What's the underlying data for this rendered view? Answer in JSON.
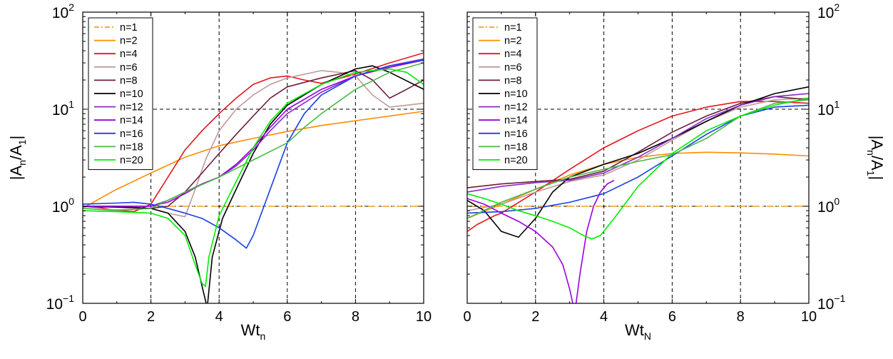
{
  "chart_data": [
    {
      "type": "line",
      "panel": "left",
      "xlabel": "Wt",
      "xlabel_sub": "n",
      "ylabel_parts": [
        "|A",
        "n",
        "/A",
        "1",
        "|"
      ],
      "ylabel_side": "left",
      "xlim": [
        0,
        10
      ],
      "ylim": [
        0.1,
        100
      ],
      "yscale": "log",
      "xticks": [
        "0",
        "2",
        "4",
        "6",
        "8",
        "10"
      ],
      "yticks": [
        {
          "base": "10",
          "exp": "−1"
        },
        {
          "base": "10",
          "exp": "0"
        },
        {
          "base": "10",
          "exp": "1"
        },
        {
          "base": "10",
          "exp": "2"
        }
      ],
      "grid": {
        "vertical_x": [
          2,
          4,
          6,
          8
        ],
        "horizontal_y": [
          1,
          10
        ],
        "style": "dashed"
      },
      "legend": "top-left",
      "series": [
        {
          "name": "n=1",
          "color": "#f4a01c",
          "dash": "dashdot",
          "x": [
            0,
            10
          ],
          "y": [
            1,
            1
          ]
        },
        {
          "name": "n=2",
          "color": "#ff8c00",
          "x": [
            0,
            0.5,
            1,
            2,
            3,
            4,
            5,
            6,
            7,
            8,
            9,
            10
          ],
          "y": [
            0.95,
            1.2,
            1.5,
            2.2,
            3.2,
            4.2,
            5.0,
            5.9,
            6.8,
            7.6,
            8.5,
            9.5
          ]
        },
        {
          "name": "n=4",
          "color": "#e8141e",
          "x": [
            0,
            0.5,
            1,
            1.5,
            2,
            2.5,
            3,
            3.5,
            4,
            4.5,
            5,
            5.5,
            6,
            6.5,
            7,
            8,
            9,
            10
          ],
          "y": [
            1.0,
            0.97,
            0.9,
            0.88,
            1.05,
            2.0,
            3.8,
            6.0,
            9.0,
            13.0,
            18.0,
            21.0,
            22.0,
            20.0,
            18.5,
            23.0,
            30.0,
            38.0
          ]
        },
        {
          "name": "n=6",
          "color": "#c09a9a",
          "x": [
            0,
            1,
            2,
            2.5,
            3,
            3.3,
            3.6,
            4,
            4.5,
            5,
            5.5,
            6,
            7,
            7.5,
            8,
            8.5,
            9,
            10
          ],
          "y": [
            0.95,
            0.92,
            0.95,
            0.85,
            0.78,
            1.5,
            3.0,
            6.0,
            10.0,
            14.0,
            18.0,
            21.0,
            25.0,
            24.0,
            22.0,
            14.0,
            10.5,
            11.5
          ]
        },
        {
          "name": "n=8",
          "color": "#6e1e3c",
          "x": [
            0,
            1,
            2,
            2.5,
            3,
            3.5,
            4,
            4.5,
            5,
            5.5,
            6,
            7,
            8,
            8.5,
            9,
            9.5,
            10
          ],
          "y": [
            1.0,
            1.0,
            0.95,
            1.0,
            1.4,
            2.2,
            3.5,
            5.5,
            8.5,
            13.0,
            17.0,
            21.0,
            25.0,
            20.0,
            13.0,
            16.0,
            20.0
          ]
        },
        {
          "name": "n=10",
          "color": "#000000",
          "x": [
            0,
            1,
            2,
            2.5,
            3,
            3.3,
            3.5,
            3.65,
            3.8,
            4.1,
            4.5,
            5,
            5.5,
            6,
            7,
            8,
            8.5,
            9,
            10
          ],
          "y": [
            1.0,
            0.98,
            0.95,
            0.85,
            0.55,
            0.3,
            0.15,
            0.09,
            0.3,
            0.75,
            1.5,
            3.5,
            7.0,
            11.0,
            18.0,
            26.0,
            28.0,
            24.0,
            16.0
          ]
        },
        {
          "name": "n=12",
          "color": "#8a2bc8",
          "x": [
            0,
            1,
            2,
            2.5,
            3,
            3.5,
            4,
            4.5,
            5,
            5.5,
            6,
            7,
            8,
            9,
            10
          ],
          "y": [
            1.0,
            1.0,
            1.0,
            1.15,
            1.4,
            1.7,
            2.0,
            2.6,
            3.8,
            6.0,
            9.0,
            15.0,
            22.0,
            28.0,
            33.0
          ]
        },
        {
          "name": "n=14",
          "color": "#9a00e0",
          "x": [
            0,
            1,
            2,
            2.5,
            3,
            3.5,
            4,
            4.5,
            5,
            5.5,
            6,
            7,
            8,
            9,
            10
          ],
          "y": [
            1.0,
            1.0,
            1.0,
            1.1,
            1.35,
            1.7,
            2.0,
            2.7,
            4.0,
            6.5,
            10.0,
            16.0,
            22.0,
            27.0,
            32.0
          ]
        },
        {
          "name": "n=16",
          "color": "#1a3ee8",
          "x": [
            0,
            1,
            1.5,
            2,
            2.5,
            3,
            3.5,
            4,
            4.5,
            4.8,
            5,
            5.5,
            6,
            6.5,
            7,
            8,
            9,
            10
          ],
          "y": [
            1.05,
            1.08,
            1.1,
            1.05,
            0.95,
            0.85,
            0.75,
            0.6,
            0.45,
            0.37,
            0.5,
            1.5,
            4.5,
            9.0,
            14.0,
            22.0,
            28.0,
            32.0
          ]
        },
        {
          "name": "n=18",
          "color": "#4cb848",
          "x": [
            0,
            1,
            2,
            3,
            4,
            5,
            6,
            6.5,
            7,
            8,
            9,
            10
          ],
          "y": [
            0.95,
            0.9,
            0.95,
            1.4,
            2.0,
            3.0,
            4.5,
            6.5,
            9.0,
            16.0,
            24.0,
            30.0
          ]
        },
        {
          "name": "n=20",
          "color": "#00ee00",
          "x": [
            0,
            1,
            2,
            2.5,
            3,
            3.3,
            3.5,
            3.6,
            3.7,
            4,
            4.5,
            5,
            5.5,
            6,
            7,
            8,
            9,
            9.5,
            10
          ],
          "y": [
            0.9,
            0.88,
            0.85,
            0.75,
            0.5,
            0.25,
            0.16,
            0.15,
            0.3,
            0.8,
            1.8,
            4.0,
            7.5,
            11.5,
            18.0,
            24.0,
            26.0,
            24.0,
            18.0
          ]
        }
      ]
    },
    {
      "type": "line",
      "panel": "right",
      "xlabel": "Wt",
      "xlabel_sub": "N",
      "ylabel_parts": [
        "|A",
        "n",
        "/A",
        "1",
        "|"
      ],
      "ylabel_side": "right",
      "xlim": [
        0,
        10
      ],
      "ylim": [
        0.1,
        100
      ],
      "yscale": "log",
      "xticks": [
        "0",
        "2",
        "4",
        "6",
        "8",
        "10"
      ],
      "yticks": [
        {
          "base": "10",
          "exp": "−1"
        },
        {
          "base": "10",
          "exp": "0"
        },
        {
          "base": "10",
          "exp": "1"
        },
        {
          "base": "10",
          "exp": "2"
        }
      ],
      "grid": {
        "vertical_x": [
          2,
          4,
          6,
          8
        ],
        "horizontal_y": [
          1,
          10
        ],
        "style": "dashed"
      },
      "legend": "top-left",
      "series": [
        {
          "name": "n=1",
          "color": "#f4a01c",
          "dash": "dashdot",
          "x": [
            0,
            10
          ],
          "y": [
            1,
            1
          ]
        },
        {
          "name": "n=2",
          "color": "#ff8c00",
          "x": [
            0,
            1,
            2,
            3,
            4,
            5,
            6,
            7,
            8,
            9,
            10
          ],
          "y": [
            0.75,
            1.05,
            1.5,
            2.1,
            2.7,
            3.2,
            3.5,
            3.6,
            3.55,
            3.45,
            3.3
          ]
        },
        {
          "name": "n=4",
          "color": "#e8141e",
          "x": [
            0,
            0.3,
            0.8,
            1,
            2,
            3,
            4,
            5,
            6,
            7,
            8,
            9,
            10
          ],
          "y": [
            0.55,
            0.65,
            0.8,
            0.85,
            1.4,
            2.4,
            4.0,
            6.0,
            8.5,
            10.5,
            12.0,
            12.0,
            11.5
          ]
        },
        {
          "name": "n=6",
          "color": "#c09a9a",
          "x": [
            0,
            1,
            2,
            3,
            3.5,
            4,
            5,
            6,
            7,
            8,
            9,
            10
          ],
          "y": [
            0.9,
            1.05,
            1.4,
            1.8,
            1.95,
            2.1,
            3.0,
            4.8,
            7.5,
            10.5,
            12.5,
            13.0
          ]
        },
        {
          "name": "n=8",
          "color": "#6e1e3c",
          "x": [
            0,
            1,
            2,
            3,
            4,
            5,
            6,
            7,
            8,
            9,
            10
          ],
          "y": [
            1.55,
            1.7,
            1.8,
            1.9,
            2.3,
            3.6,
            5.8,
            8.5,
            11.5,
            13.5,
            12.5
          ]
        },
        {
          "name": "n=10",
          "color": "#000000",
          "x": [
            0,
            0.5,
            1,
            1.5,
            2,
            2.5,
            3,
            4,
            5,
            6,
            7,
            8,
            9,
            10
          ],
          "y": [
            1.15,
            0.9,
            0.55,
            0.48,
            0.75,
            1.4,
            2.0,
            2.7,
            3.5,
            5.0,
            7.5,
            11.0,
            14.5,
            17.0
          ]
        },
        {
          "name": "n=12",
          "color": "#8a2bc8",
          "x": [
            0,
            1,
            2,
            3,
            4,
            5,
            6,
            7,
            8,
            9,
            10
          ],
          "y": [
            1.4,
            1.6,
            1.75,
            1.85,
            2.2,
            3.2,
            5.0,
            8.0,
            11.0,
            13.5,
            14.5
          ]
        },
        {
          "name": "n=14",
          "color": "#9a00e0",
          "x": [
            0,
            0.5,
            1,
            1.5,
            2,
            2.5,
            2.8,
            3.0,
            3.15,
            3.3,
            3.5,
            3.7,
            3.9,
            4.1,
            4.3
          ],
          "y": [
            1.2,
            1.05,
            0.85,
            0.7,
            0.55,
            0.38,
            0.25,
            0.14,
            0.08,
            0.2,
            0.55,
            1.0,
            1.4,
            1.7,
            1.85
          ]
        },
        {
          "name": "n=16",
          "color": "#1a3ee8",
          "x": [
            0,
            1,
            2,
            3,
            4,
            5,
            6,
            7,
            8,
            9,
            10
          ],
          "y": [
            0.85,
            0.88,
            0.95,
            1.1,
            1.35,
            2.0,
            3.3,
            5.5,
            8.5,
            10.5,
            11.0
          ]
        },
        {
          "name": "n=18",
          "color": "#4cb848",
          "x": [
            0,
            1,
            2,
            3,
            4,
            5,
            6,
            7,
            8,
            9,
            10
          ],
          "y": [
            0.75,
            1.1,
            1.5,
            2.0,
            2.4,
            2.9,
            3.4,
            5.0,
            8.5,
            11.5,
            12.5
          ]
        },
        {
          "name": "n=20",
          "color": "#00ee00",
          "x": [
            0,
            0.5,
            1,
            1.5,
            2,
            2.5,
            3,
            3.4,
            3.65,
            3.9,
            4.3,
            5,
            6,
            7,
            8,
            9,
            10
          ],
          "y": [
            1.35,
            1.2,
            1.05,
            0.9,
            0.8,
            0.7,
            0.6,
            0.5,
            0.46,
            0.5,
            0.75,
            1.6,
            3.5,
            6.0,
            8.5,
            11.0,
            13.0
          ]
        }
      ]
    }
  ]
}
